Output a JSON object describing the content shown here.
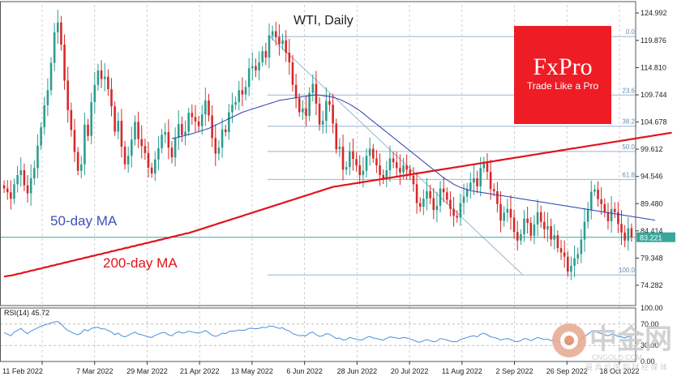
{
  "colors": {
    "up": "#2a9d8f",
    "down": "#d62828",
    "ma50": "#2b3fb0",
    "ma200": "#e0141b",
    "fib": "#9ab5cf",
    "rsi": "#4a90d9",
    "price_line": "#3aa79c",
    "brand_bg": "#ee1c25"
  },
  "chart_data": {
    "type": "candlestick",
    "title": "WTI, Daily",
    "ylim": [
      70.5,
      126.5
    ],
    "y_ticks": [
      "124.992",
      "119.876",
      "114.810",
      "109.744",
      "104.678",
      "99.612",
      "94.546",
      "89.480",
      "84.414",
      "79.348",
      "74.282"
    ],
    "x_ticks": [
      "11 Feb 2022",
      "7 Mar 2022",
      "29 Mar 2022",
      "21 Apr 2022",
      "13 May 2022",
      "6 Jun 2022",
      "28 Jun 2022",
      "20 Jul 2022",
      "11 Aug 2022",
      "2 Sep 2022",
      "26 Sep 2022",
      "18 Oct 2022"
    ],
    "current_price": "83.221",
    "current_value": 83.221,
    "closes": [
      92.3,
      91.6,
      90.4,
      93.1,
      94.8,
      95.7,
      92.9,
      91.4,
      94.2,
      96.1,
      100.3,
      103.7,
      107.8,
      110.6,
      115.7,
      121.4,
      123.2,
      119.1,
      112.4,
      106.9,
      103.2,
      99.1,
      95.6,
      96.8,
      104.2,
      102.1,
      108.4,
      111.6,
      114.3,
      112.7,
      113.1,
      110.8,
      107.6,
      102.9,
      104.9,
      100.1,
      96.8,
      98.4,
      101.4,
      104.7,
      101.5,
      100.2,
      98.9,
      96.2,
      95.1,
      97.7,
      99.8,
      102.3,
      102.8,
      99.9,
      98.1,
      101.8,
      104.3,
      102.2,
      102.9,
      106.4,
      105.6,
      104.8,
      103.9,
      106.1,
      108.7,
      105.9,
      101.7,
      98.8,
      99.9,
      103.3,
      102.8,
      106.5,
      107.9,
      108.4,
      110.6,
      109.8,
      111.2,
      114.7,
      115.1,
      114.3,
      115.8,
      117.9,
      116.7,
      120.8,
      121.6,
      120.5,
      119.2,
      119.9,
      117.6,
      115.8,
      111.6,
      109.1,
      106.5,
      107.2,
      105.8,
      110.1,
      111.8,
      108.1,
      104.2,
      104.9,
      108.6,
      107.9,
      104.4,
      99.6,
      100.1,
      95.8,
      96.3,
      99.2,
      97.8,
      96.6,
      94.8,
      95.6,
      98.4,
      99.7,
      97.9,
      96.6,
      94.8,
      94.1,
      95.7,
      97.9,
      97.2,
      96.1,
      95.3,
      96.6,
      95.8,
      94.7,
      93.1,
      89.6,
      88.9,
      90.4,
      91.8,
      90.5,
      88.3,
      89.1,
      92.3,
      91.6,
      90.2,
      88.5,
      87.2,
      86.9,
      89.6,
      90.8,
      92.1,
      93.4,
      94.2,
      92.7,
      96.1,
      97.3,
      95.4,
      92.2,
      91.8,
      89.4,
      86.3,
      87.8,
      88.5,
      86.9,
      84.2,
      82.6,
      83.8,
      86.7,
      85.9,
      83.5,
      85.6,
      87.9,
      86.1,
      84.7,
      85.3,
      82.8,
      83.6,
      81.2,
      80.4,
      79.6,
      76.8,
      77.9,
      79.3,
      80.1,
      82.8,
      86.1,
      88.4,
      91.7,
      92.1,
      90.3,
      89.4,
      87.9,
      86.2,
      88.5,
      87.9,
      85.7,
      84.1,
      82.6,
      84.9,
      83.2
    ],
    "ma50": [
      null,
      null,
      null,
      null,
      null,
      null,
      null,
      null,
      null,
      null,
      null,
      null,
      null,
      null,
      null,
      null,
      null,
      null,
      null,
      null,
      null,
      null,
      null,
      null,
      null,
      null,
      null,
      null,
      null,
      null,
      null,
      null,
      null,
      null,
      null,
      null,
      null,
      null,
      null,
      null,
      null,
      null,
      null,
      null,
      null,
      null,
      null,
      null,
      null,
      null,
      101.6,
      101.7,
      101.9,
      102.0,
      102.2,
      102.4,
      102.5,
      102.7,
      102.9,
      103.1,
      103.3,
      103.5,
      103.8,
      104.1,
      104.4,
      104.7,
      105.0,
      105.3,
      105.6,
      105.9,
      106.2,
      106.5,
      106.7,
      106.9,
      107.1,
      107.3,
      107.5,
      107.7,
      107.9,
      108.1,
      108.3,
      108.5,
      108.7,
      108.8,
      108.9,
      109.0,
      109.1,
      109.2,
      109.3,
      109.4,
      109.5,
      109.6,
      109.7,
      109.7,
      109.7,
      109.6,
      109.5,
      109.4,
      109.3,
      109.1,
      108.9,
      108.6,
      108.3,
      108.0,
      107.6,
      107.2,
      106.8,
      106.3,
      105.8,
      105.3,
      104.8,
      104.3,
      103.8,
      103.3,
      102.8,
      102.3,
      101.8,
      101.3,
      100.8,
      100.3,
      99.8,
      99.3,
      98.8,
      98.3,
      97.8,
      97.3,
      96.8,
      96.3,
      95.8,
      95.3,
      94.8,
      94.3,
      93.9,
      93.5,
      93.1,
      92.8,
      92.5,
      92.3,
      92.1,
      91.9,
      91.8,
      91.7,
      91.6,
      91.5,
      91.4,
      91.3,
      91.2,
      91.1,
      91.0,
      90.9,
      90.8,
      90.7,
      90.6,
      90.5,
      90.4,
      90.3,
      90.2,
      90.1,
      90.0,
      89.9,
      89.8,
      89.7,
      89.6,
      89.5,
      89.4,
      89.3,
      89.2,
      89.1,
      89.0,
      88.9,
      88.8,
      88.7,
      88.6,
      88.5,
      88.4,
      88.3,
      88.2,
      88.1,
      88.0,
      87.9,
      87.8,
      87.7,
      87.6,
      87.5,
      87.4,
      87.3,
      87.2,
      87.1,
      87.0,
      86.9,
      86.8,
      86.7,
      86.6,
      86.5,
      86.4
    ],
    "ma200": [
      75.9,
      76.0,
      76.1,
      76.2,
      76.4,
      76.5,
      76.7,
      76.8,
      77.0,
      77.1,
      77.3,
      77.4,
      77.6,
      77.7,
      77.9,
      78.0,
      78.2,
      78.3,
      78.5,
      78.6,
      78.8,
      78.9,
      79.1,
      79.2,
      79.4,
      79.5,
      79.7,
      79.8,
      80.0,
      80.1,
      80.3,
      80.4,
      80.6,
      80.7,
      80.9,
      81.0,
      81.2,
      81.3,
      81.5,
      81.6,
      81.8,
      81.9,
      82.1,
      82.2,
      82.4,
      82.5,
      82.7,
      82.8,
      83.0,
      83.1,
      83.3,
      83.4,
      83.6,
      83.7,
      83.9,
      84.0,
      84.2,
      84.4,
      84.6,
      84.8,
      85.0,
      85.2,
      85.4,
      85.6,
      85.8,
      86.0,
      86.2,
      86.4,
      86.6,
      86.8,
      87.0,
      87.2,
      87.4,
      87.6,
      87.8,
      88.0,
      88.2,
      88.4,
      88.6,
      88.8,
      89.0,
      89.2,
      89.4,
      89.6,
      89.8,
      90.0,
      90.2,
      90.4,
      90.6,
      90.8,
      91.0,
      91.2,
      91.4,
      91.6,
      91.8,
      92.0,
      92.2,
      92.4,
      92.6,
      92.7,
      92.8,
      92.9,
      93.0,
      93.1,
      93.2,
      93.3,
      93.4,
      93.5,
      93.6,
      93.7,
      93.8,
      93.9,
      94.0,
      94.1,
      94.2,
      94.3,
      94.4,
      94.5,
      94.6,
      94.7,
      94.8,
      94.9,
      95.0,
      95.1,
      95.2,
      95.3,
      95.4,
      95.5,
      95.6,
      95.7,
      95.8,
      95.9,
      96.0,
      96.1,
      96.2,
      96.3,
      96.4,
      96.5,
      96.6,
      96.7,
      96.8,
      96.9,
      97.0,
      97.1,
      97.2,
      97.3,
      97.4,
      97.5,
      97.6,
      97.7,
      97.8,
      97.9,
      98.0,
      98.1,
      98.2,
      98.3,
      98.4,
      98.5,
      98.6,
      98.7,
      98.8,
      98.9,
      99.0,
      99.1,
      99.2,
      99.3,
      99.4,
      99.5,
      99.6,
      99.7,
      99.8,
      99.9,
      100.0,
      100.1,
      100.2,
      100.3,
      100.4,
      100.5,
      100.6,
      100.7,
      100.8,
      100.9,
      101.0,
      101.1,
      101.2,
      101.3,
      101.4,
      101.5,
      101.6,
      101.7,
      101.8,
      101.9,
      102.0,
      102.1,
      102.2,
      102.3,
      102.4,
      102.5,
      102.6,
      102.7
    ],
    "fib_levels": [
      {
        "label": "0.0",
        "value": 120.6
      },
      {
        "label": "23.6",
        "value": 109.7
      },
      {
        "label": "38.2",
        "value": 103.9
      },
      {
        "label": "50.0",
        "value": 99.2
      },
      {
        "label": "61.8",
        "value": 94.0
      },
      {
        "label": "100.0",
        "value": 76.2
      }
    ],
    "ma_labels": {
      "ma50": "50-day MA",
      "ma200": "200-day MA"
    },
    "rsi": {
      "label": "RSI(14) 45.72",
      "ylim": [
        0,
        100
      ],
      "ticks": [
        "100.00",
        "70.00",
        "30.00",
        "0.00"
      ],
      "levels": [
        70,
        30
      ],
      "values": [
        54,
        51,
        48,
        55,
        58,
        62,
        56,
        52,
        57,
        60,
        63,
        66,
        68,
        70,
        72,
        74,
        75,
        70,
        63,
        58,
        55,
        52,
        50,
        53,
        60,
        57,
        62,
        63,
        64,
        61,
        61,
        58,
        55,
        50,
        53,
        48,
        46,
        49,
        52,
        55,
        51,
        50,
        48,
        46,
        45,
        49,
        51,
        54,
        54,
        50,
        48,
        53,
        56,
        53,
        54,
        57,
        55,
        54,
        53,
        55,
        58,
        54,
        49,
        47,
        49,
        53,
        52,
        56,
        57,
        57,
        59,
        58,
        59,
        62,
        62,
        61,
        62,
        64,
        63,
        66,
        66,
        64,
        62,
        63,
        59,
        57,
        52,
        50,
        48,
        49,
        48,
        53,
        55,
        50,
        47,
        48,
        52,
        51,
        47,
        43,
        44,
        40,
        41,
        45,
        43,
        42,
        40,
        41,
        45,
        47,
        44,
        43,
        41,
        40,
        43,
        46,
        45,
        44,
        43,
        45,
        44,
        42,
        40,
        37,
        36,
        39,
        41,
        39,
        37,
        38,
        43,
        42,
        40,
        38,
        37,
        37,
        41,
        43,
        45,
        47,
        48,
        46,
        51,
        53,
        50,
        46,
        45,
        43,
        40,
        42,
        43,
        41,
        38,
        37,
        39,
        43,
        42,
        39,
        42,
        45,
        43,
        41,
        42,
        39,
        40,
        37,
        36,
        35,
        32,
        34,
        37,
        38,
        42,
        47,
        51,
        56,
        57,
        54,
        52,
        50,
        48,
        51,
        50,
        47,
        46,
        44,
        47,
        45
      ]
    }
  },
  "brand": {
    "name": "FxPro",
    "tagline": "Trade Like a Pro"
  },
  "watermark": {
    "big": "中金网",
    "small": "CNGOLD.COM",
    "small2": "最 具 价 值 的 财 经 媒 体"
  }
}
